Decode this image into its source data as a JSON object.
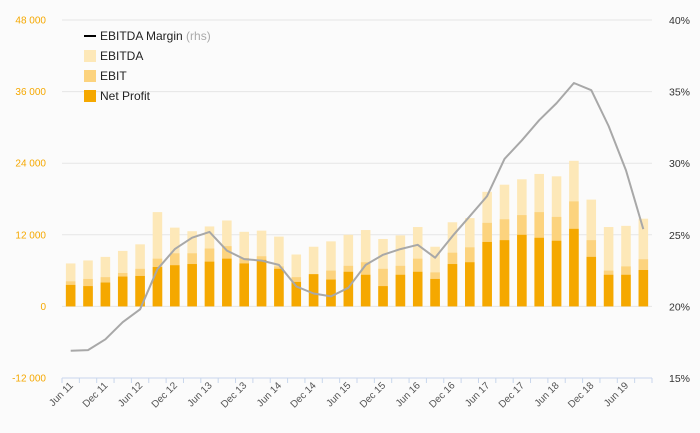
{
  "chart_data": {
    "type": "bar",
    "title": "",
    "xlabel": "",
    "ylabel": "",
    "ylim": [
      -12000,
      48000
    ],
    "y2lim": [
      15,
      40
    ],
    "y_ticks": [
      -12000,
      0,
      12000,
      24000,
      36000,
      48000
    ],
    "y_tick_labels": [
      "-12 000",
      "0",
      "12 000",
      "24 000",
      "36 000",
      "48 000"
    ],
    "y2_ticks": [
      15,
      20,
      25,
      30,
      35,
      40
    ],
    "y2_tick_labels": [
      "15%",
      "20%",
      "25%",
      "30%",
      "35%",
      "40%"
    ],
    "x_tick_labels": [
      "Jun 11",
      "Dec 11",
      "Jun 12",
      "Dec 12",
      "Jun 13",
      "Dec 13",
      "Jun 14",
      "Dec 14",
      "Jun 15",
      "Dec 15",
      "Jun 16",
      "Dec 16",
      "Jun 17",
      "Dec 17",
      "Jun 18",
      "Dec 18",
      "Jun 19"
    ],
    "categories": [
      "Jun 11",
      "Sep 11",
      "Dec 11",
      "Mar 12",
      "Jun 12",
      "Sep 12",
      "Dec 12",
      "Mar 13",
      "Jun 13",
      "Sep 13",
      "Dec 13",
      "Mar 14",
      "Jun 14",
      "Sep 14",
      "Dec 14",
      "Mar 15",
      "Jun 15",
      "Sep 15",
      "Dec 15",
      "Mar 16",
      "Jun 16",
      "Sep 16",
      "Dec 16",
      "Mar 17",
      "Jun 17",
      "Sep 17",
      "Dec 17",
      "Mar 18",
      "Jun 18",
      "Sep 18",
      "Dec 18",
      "Mar 19",
      "Jun 19",
      "Sep 19"
    ],
    "series": [
      {
        "name": "EBITDA",
        "type": "bar",
        "color": "#fde8b8",
        "values": [
          7200,
          7700,
          8300,
          9300,
          10400,
          15800,
          13200,
          12600,
          13400,
          14400,
          12500,
          12700,
          11700,
          8700,
          10000,
          10900,
          12000,
          12800,
          11300,
          11900,
          13300,
          10000,
          14100,
          14800,
          19200,
          20400,
          21300,
          22200,
          21800,
          24400,
          17900,
          13300,
          13500,
          14700
        ]
      },
      {
        "name": "EBIT",
        "type": "bar",
        "color": "#fcd37e",
        "values": [
          4200,
          4600,
          4900,
          5600,
          6300,
          8000,
          8900,
          8900,
          9700,
          10100,
          8100,
          8400,
          6700,
          4900,
          5400,
          6000,
          6800,
          7400,
          6300,
          6800,
          8000,
          5700,
          9000,
          9900,
          14000,
          14600,
          15300,
          15800,
          15000,
          17600,
          11100,
          6000,
          6700,
          7900
        ]
      },
      {
        "name": "Net Profit",
        "type": "bar",
        "color": "#f5a800",
        "values": [
          3600,
          3400,
          4000,
          5000,
          5100,
          6600,
          6900,
          7100,
          7500,
          8000,
          7200,
          7800,
          6300,
          4100,
          5400,
          4500,
          5800,
          5300,
          3400,
          5300,
          5800,
          4600,
          7100,
          7400,
          10800,
          11100,
          12000,
          11500,
          11000,
          13000,
          8300,
          5300,
          5300,
          6100
        ]
      },
      {
        "name": "EBITDA Margin",
        "type": "line",
        "axis": "right",
        "color": "#a8a8a8",
        "values": [
          16.9,
          16.95,
          17.7,
          18.9,
          19.8,
          22.6,
          24.0,
          24.8,
          25.2,
          23.9,
          23.3,
          23.2,
          22.9,
          21.4,
          20.9,
          20.7,
          21.3,
          22.9,
          23.6,
          24.0,
          24.3,
          23.4,
          24.9,
          26.3,
          27.7,
          30.3,
          31.6,
          33.0,
          34.2,
          35.6,
          35.1,
          32.6,
          29.5,
          25.4
        ]
      }
    ],
    "legend": {
      "placement": "top-left",
      "entries": [
        {
          "label": "EBITDA Margin",
          "suffix": "(rhs)",
          "marker": "line",
          "color": "#000000"
        },
        {
          "label": "EBITDA",
          "marker": "box",
          "color": "#fde8b8"
        },
        {
          "label": "EBIT",
          "marker": "box",
          "color": "#fcd37e"
        },
        {
          "label": "Net Profit",
          "marker": "box",
          "color": "#f5a800"
        }
      ]
    },
    "grid": true,
    "colors": {
      "left_axis_labels": "#f5a800",
      "right_axis_labels": "#333333",
      "grid": "#e6e6e6",
      "background": "#fbfbfb"
    }
  }
}
